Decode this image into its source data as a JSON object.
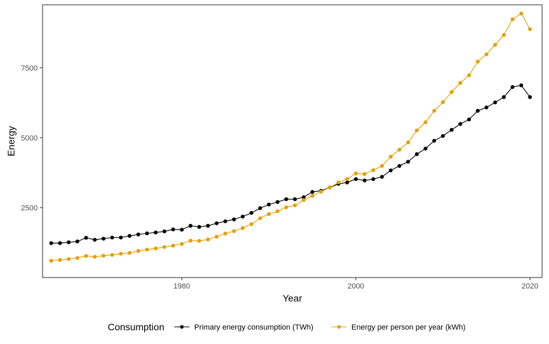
{
  "chart_data": {
    "type": "line",
    "xlabel": "Year",
    "ylabel": "Energy",
    "xlim": [
      1964,
      2021.4
    ],
    "ylim": [
      0,
      9750
    ],
    "x_ticks": [
      1980,
      2000,
      2020
    ],
    "y_ticks": [
      2500,
      5000,
      7500
    ],
    "grid": false,
    "legend": {
      "title": "Consumption",
      "position": "bottom"
    },
    "x": [
      1965,
      1966,
      1967,
      1968,
      1969,
      1970,
      1971,
      1972,
      1973,
      1974,
      1975,
      1976,
      1977,
      1978,
      1979,
      1980,
      1981,
      1982,
      1983,
      1984,
      1985,
      1986,
      1987,
      1988,
      1989,
      1990,
      1991,
      1992,
      1993,
      1994,
      1995,
      1996,
      1997,
      1998,
      1999,
      2000,
      2001,
      2002,
      2003,
      2004,
      2005,
      2006,
      2007,
      2008,
      2009,
      2010,
      2011,
      2012,
      2013,
      2014,
      2015,
      2016,
      2017,
      2018,
      2019,
      2020
    ],
    "series": [
      {
        "name": "Primary energy consumption (TWh)",
        "color": "#000000",
        "values": [
          1230,
          1230,
          1260,
          1290,
          1420,
          1350,
          1390,
          1430,
          1430,
          1490,
          1540,
          1580,
          1610,
          1650,
          1720,
          1710,
          1850,
          1810,
          1850,
          1940,
          2010,
          2080,
          2180,
          2310,
          2480,
          2610,
          2700,
          2800,
          2800,
          2870,
          3060,
          3100,
          3220,
          3350,
          3400,
          3520,
          3470,
          3520,
          3600,
          3830,
          3990,
          4140,
          4410,
          4610,
          4890,
          5060,
          5280,
          5490,
          5650,
          5960,
          6080,
          6260,
          6450,
          6810,
          6870,
          6450
        ]
      },
      {
        "name": "Energy per person per year (kWh)",
        "color": "#E69F00",
        "values": [
          600,
          630,
          660,
          700,
          770,
          740,
          780,
          810,
          850,
          880,
          950,
          1000,
          1040,
          1090,
          1140,
          1200,
          1320,
          1310,
          1360,
          1460,
          1570,
          1660,
          1770,
          1910,
          2120,
          2270,
          2370,
          2510,
          2580,
          2770,
          2920,
          3070,
          3220,
          3400,
          3520,
          3720,
          3700,
          3840,
          3990,
          4320,
          4570,
          4830,
          5260,
          5550,
          5960,
          6270,
          6630,
          6960,
          7230,
          7720,
          7980,
          8320,
          8670,
          9230,
          9440,
          8880
        ]
      }
    ]
  }
}
